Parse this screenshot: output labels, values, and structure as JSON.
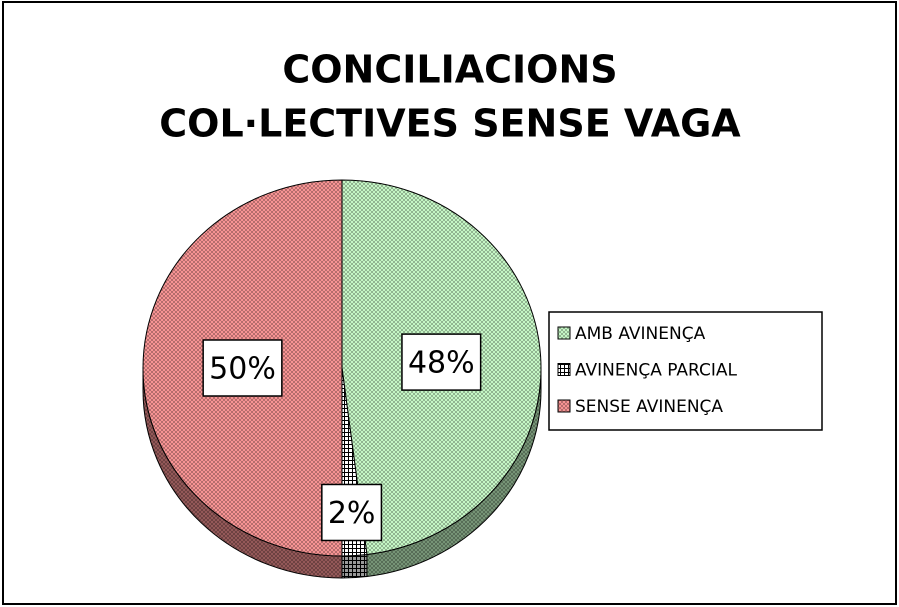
{
  "chart_data": {
    "type": "pie",
    "title": [
      "CONCILIACIONS",
      "COL·LECTIVES SENSE VAGA"
    ],
    "categories": [
      "AMB AVINENÇA",
      "AVINENÇA PARCIAL",
      "SENSE AVINENÇA"
    ],
    "values": [
      48,
      2,
      50
    ],
    "value_labels": [
      "48%",
      "2%",
      "50%"
    ],
    "colors": [
      "#ccffcc",
      "#ffffff",
      "#ff9999"
    ],
    "legend": "right"
  }
}
